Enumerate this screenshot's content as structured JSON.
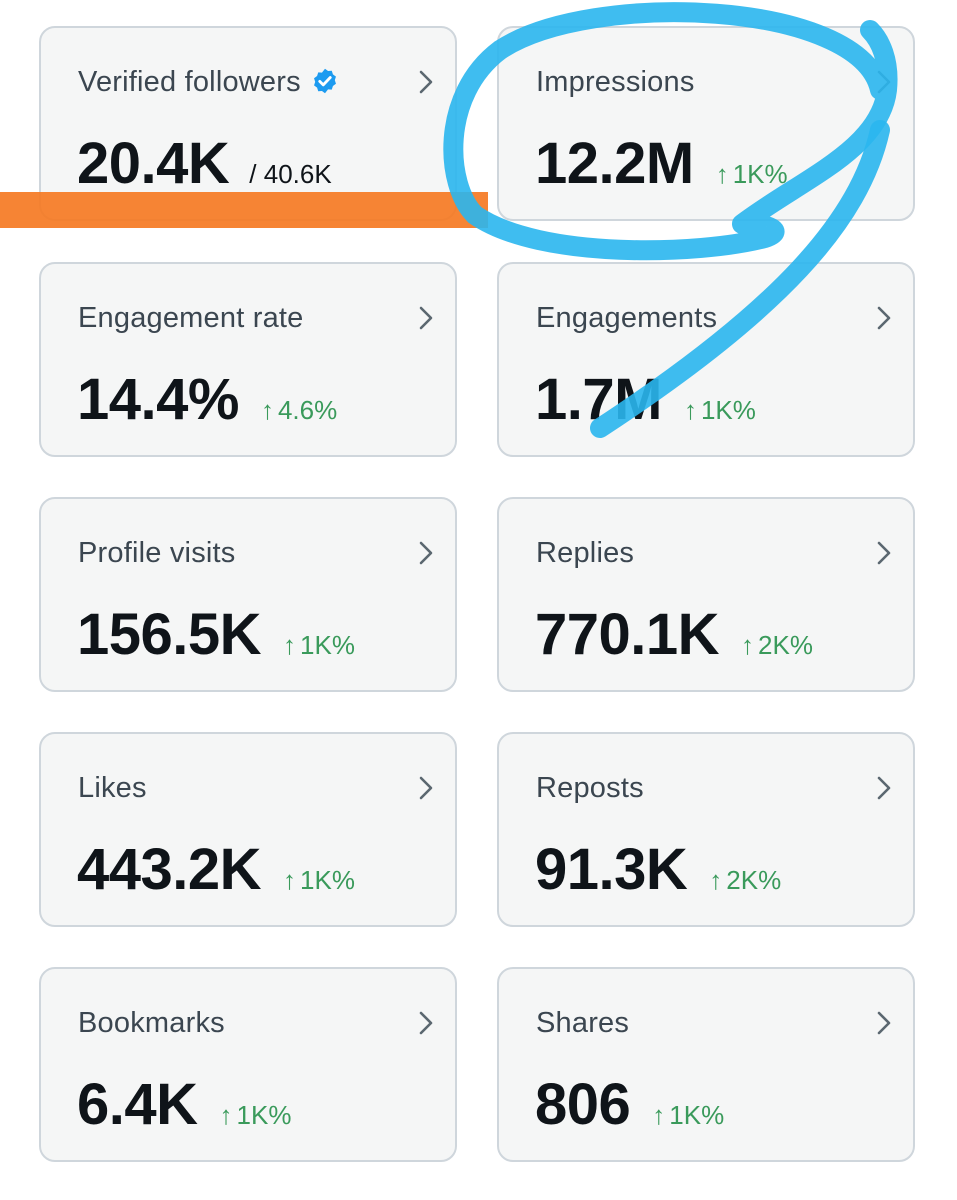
{
  "colors": {
    "card_bg": "#f5f6f6",
    "card_border": "#cfd6dc",
    "value": "#0f1419",
    "label": "#3b4650",
    "positive": "#3a9a5b",
    "verified_badge": "#1d9bf0",
    "highlighter_orange": "#f57a23",
    "pen_blue": "#2ab6ee"
  },
  "icons": {
    "chevron": "chevron-right-icon",
    "verified": "verified-badge-icon",
    "up": "arrow-up-icon"
  },
  "cards": [
    {
      "label": "Verified followers",
      "value": "20.4K",
      "total": "/ 40.6K"
    },
    {
      "label": "Impressions",
      "value": "12.2M",
      "arrow": "↑",
      "change": "1K%"
    },
    {
      "label": "Engagement rate",
      "value": "14.4%",
      "arrow": "↑",
      "change": "4.6%"
    },
    {
      "label": "Engagements",
      "value": "1.7M",
      "arrow": "↑",
      "change": "1K%"
    },
    {
      "label": "Profile visits",
      "value": "156.5K",
      "arrow": "↑",
      "change": "1K%"
    },
    {
      "label": "Replies",
      "value": "770.1K",
      "arrow": "↑",
      "change": "2K%"
    },
    {
      "label": "Likes",
      "value": "443.2K",
      "arrow": "↑",
      "change": "1K%"
    },
    {
      "label": "Reposts",
      "value": "91.3K",
      "arrow": "↑",
      "change": "2K%"
    },
    {
      "label": "Bookmarks",
      "value": "6.4K",
      "arrow": "↑",
      "change": "1K%"
    },
    {
      "label": "Shares",
      "value": "806",
      "arrow": "↑",
      "change": "1K%"
    }
  ]
}
